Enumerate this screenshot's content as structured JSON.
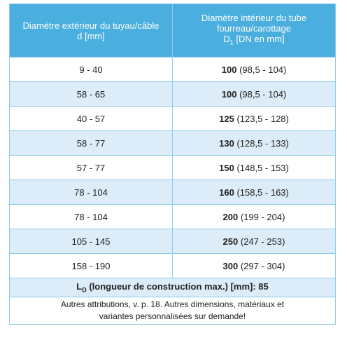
{
  "table": {
    "header": {
      "col1": [
        "Diamètre extérieur du tuyau/câble",
        "d [mm]"
      ],
      "col2": [
        "Diamètre intérieur du tube",
        "fourreau/carottage"
      ],
      "col2_symbol": "D",
      "col2_sub": "1",
      "col2_unit": "[DN en mm]"
    },
    "rows": [
      [
        "9 - 40",
        "100",
        "(98,5 - 104)"
      ],
      [
        "58 - 65",
        "100",
        "(98,5 - 104)"
      ],
      [
        "40 - 57",
        "125",
        "(123,5 - 128)"
      ],
      [
        "58 - 77",
        "130",
        "(128,5 - 133)"
      ],
      [
        "57 - 77",
        "150",
        "(148,5 - 153)"
      ],
      [
        "78 - 104",
        "160",
        "(158,5 - 163)"
      ],
      [
        "78 - 104",
        "200",
        "(199 - 204)"
      ],
      [
        "105 - 145",
        "250",
        "(247 - 253)"
      ],
      [
        "158 - 190",
        "300",
        "(297 - 304)"
      ]
    ],
    "length_row": {
      "symbol": "L",
      "sub": "D",
      "text": "(longueur de construction max.) [mm]: 85"
    },
    "footnote": [
      "Autres attributions,  v. p. 18. Autres dimensions, matériaux et",
      "variantes personnalisées sur demande!"
    ]
  }
}
